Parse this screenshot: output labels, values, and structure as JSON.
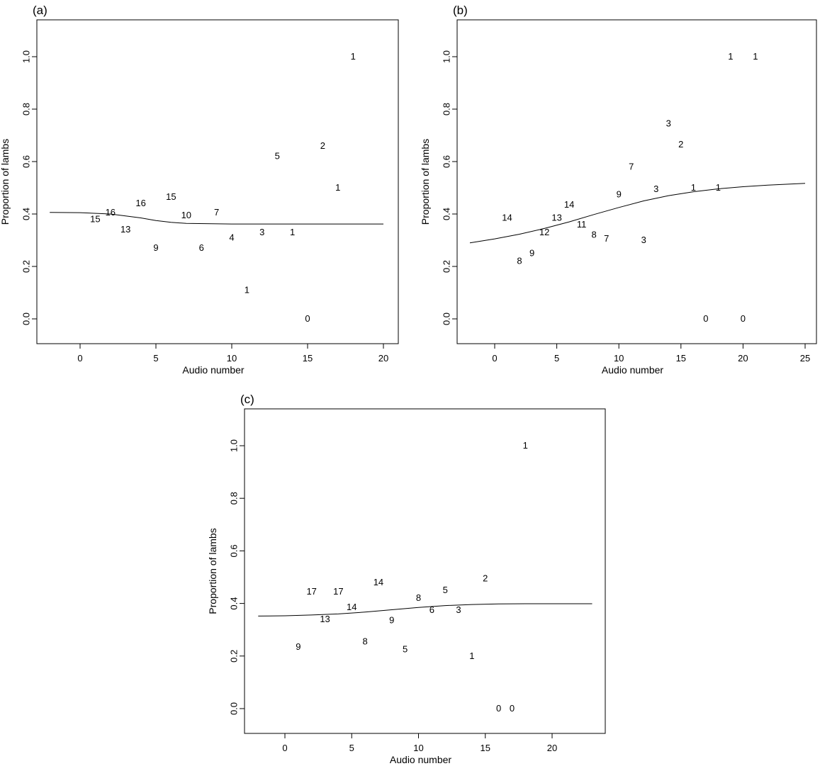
{
  "chart_data": [
    {
      "type": "scatter",
      "panel_label": "(a)",
      "xlabel": "Audio number",
      "ylabel": "Proportion of lambs",
      "xlim": [
        -2.5,
        20.7
      ],
      "ylim": [
        -0.09,
        1.14
      ],
      "xticks": [
        0,
        5,
        10,
        15,
        20
      ],
      "yticks": [
        0.0,
        0.2,
        0.4,
        0.6,
        0.8,
        1.0
      ],
      "points": [
        {
          "x": 1,
          "y": 0.38,
          "label": "15"
        },
        {
          "x": 2,
          "y": 0.405,
          "label": "16"
        },
        {
          "x": 3,
          "y": 0.34,
          "label": "13"
        },
        {
          "x": 4,
          "y": 0.44,
          "label": "16"
        },
        {
          "x": 5,
          "y": 0.27,
          "label": "9"
        },
        {
          "x": 6,
          "y": 0.465,
          "label": "15"
        },
        {
          "x": 7,
          "y": 0.395,
          "label": "10"
        },
        {
          "x": 8,
          "y": 0.27,
          "label": "6"
        },
        {
          "x": 9,
          "y": 0.405,
          "label": "7"
        },
        {
          "x": 10,
          "y": 0.31,
          "label": "4"
        },
        {
          "x": 11,
          "y": 0.11,
          "label": "1"
        },
        {
          "x": 12,
          "y": 0.33,
          "label": "3"
        },
        {
          "x": 13,
          "y": 0.62,
          "label": "5"
        },
        {
          "x": 14,
          "y": 0.33,
          "label": "1"
        },
        {
          "x": 15,
          "y": 0.0,
          "label": "0"
        },
        {
          "x": 16,
          "y": 0.66,
          "label": "2"
        },
        {
          "x": 17,
          "y": 0.5,
          "label": "1"
        },
        {
          "x": 18,
          "y": 1.0,
          "label": "1"
        }
      ],
      "curve": {
        "x": [
          -2,
          0,
          2,
          4,
          5,
          6,
          7,
          10,
          15,
          20
        ],
        "y": [
          0.406,
          0.405,
          0.4,
          0.385,
          0.375,
          0.368,
          0.364,
          0.362,
          0.362,
          0.362
        ]
      }
    },
    {
      "type": "scatter",
      "panel_label": "(b)",
      "xlabel": "Audio number",
      "ylabel": "Proportion of lambs",
      "xlim": [
        -3.0,
        26.0
      ],
      "ylim": [
        -0.09,
        1.14
      ],
      "xticks": [
        0,
        5,
        10,
        15,
        20,
        25
      ],
      "yticks": [
        0.0,
        0.2,
        0.4,
        0.6,
        0.8,
        1.0
      ],
      "points": [
        {
          "x": 1,
          "y": 0.385,
          "label": "14"
        },
        {
          "x": 2,
          "y": 0.22,
          "label": "8"
        },
        {
          "x": 3,
          "y": 0.25,
          "label": "9"
        },
        {
          "x": 4,
          "y": 0.33,
          "label": "12"
        },
        {
          "x": 5,
          "y": 0.385,
          "label": "13"
        },
        {
          "x": 6,
          "y": 0.435,
          "label": "14"
        },
        {
          "x": 7,
          "y": 0.36,
          "label": "11"
        },
        {
          "x": 8,
          "y": 0.32,
          "label": "8"
        },
        {
          "x": 9,
          "y": 0.305,
          "label": "7"
        },
        {
          "x": 10,
          "y": 0.475,
          "label": "9"
        },
        {
          "x": 11,
          "y": 0.58,
          "label": "7"
        },
        {
          "x": 12,
          "y": 0.3,
          "label": "3"
        },
        {
          "x": 13,
          "y": 0.495,
          "label": "3"
        },
        {
          "x": 14,
          "y": 0.745,
          "label": "3"
        },
        {
          "x": 15,
          "y": 0.665,
          "label": "2"
        },
        {
          "x": 16,
          "y": 0.5,
          "label": "1"
        },
        {
          "x": 17,
          "y": 0.0,
          "label": "0"
        },
        {
          "x": 18,
          "y": 0.5,
          "label": "1"
        },
        {
          "x": 19,
          "y": 1.0,
          "label": "1"
        },
        {
          "x": 20,
          "y": 0.0,
          "label": "0"
        },
        {
          "x": 21,
          "y": 1.0,
          "label": "1"
        }
      ],
      "curve": {
        "x": [
          -2,
          0,
          2,
          4,
          6,
          8,
          10,
          12,
          14,
          16,
          18,
          20,
          22,
          25
        ],
        "y": [
          0.29,
          0.305,
          0.323,
          0.345,
          0.37,
          0.398,
          0.425,
          0.45,
          0.47,
          0.485,
          0.496,
          0.504,
          0.51,
          0.517
        ]
      }
    },
    {
      "type": "scatter",
      "panel_label": "(c)",
      "xlabel": "Audio number",
      "ylabel": "Proportion of lambs",
      "xlim": [
        -2.9,
        24.0
      ],
      "ylim": [
        -0.09,
        1.14
      ],
      "xticks": [
        0,
        5,
        10,
        15,
        20
      ],
      "yticks": [
        0.0,
        0.2,
        0.4,
        0.6,
        0.8,
        1.0
      ],
      "points": [
        {
          "x": 1,
          "y": 0.235,
          "label": "9"
        },
        {
          "x": 2,
          "y": 0.445,
          "label": "17"
        },
        {
          "x": 3,
          "y": 0.34,
          "label": "13"
        },
        {
          "x": 4,
          "y": 0.445,
          "label": "17"
        },
        {
          "x": 5,
          "y": 0.385,
          "label": "14"
        },
        {
          "x": 6,
          "y": 0.255,
          "label": "8"
        },
        {
          "x": 7,
          "y": 0.48,
          "label": "14"
        },
        {
          "x": 8,
          "y": 0.335,
          "label": "9"
        },
        {
          "x": 9,
          "y": 0.225,
          "label": "5"
        },
        {
          "x": 10,
          "y": 0.42,
          "label": "8"
        },
        {
          "x": 11,
          "y": 0.375,
          "label": "6"
        },
        {
          "x": 12,
          "y": 0.45,
          "label": "5"
        },
        {
          "x": 13,
          "y": 0.375,
          "label": "3"
        },
        {
          "x": 14,
          "y": 0.2,
          "label": "1"
        },
        {
          "x": 15,
          "y": 0.495,
          "label": "2"
        },
        {
          "x": 16,
          "y": 0.0,
          "label": "0"
        },
        {
          "x": 17,
          "y": 0.0,
          "label": "0"
        },
        {
          "x": 18,
          "y": 1.0,
          "label": "1"
        }
      ],
      "curve": {
        "x": [
          -2,
          0,
          2,
          4,
          6,
          8,
          10,
          12,
          14,
          16,
          18,
          20,
          23
        ],
        "y": [
          0.352,
          0.353,
          0.356,
          0.36,
          0.367,
          0.376,
          0.385,
          0.392,
          0.396,
          0.398,
          0.399,
          0.399,
          0.399
        ]
      }
    }
  ]
}
